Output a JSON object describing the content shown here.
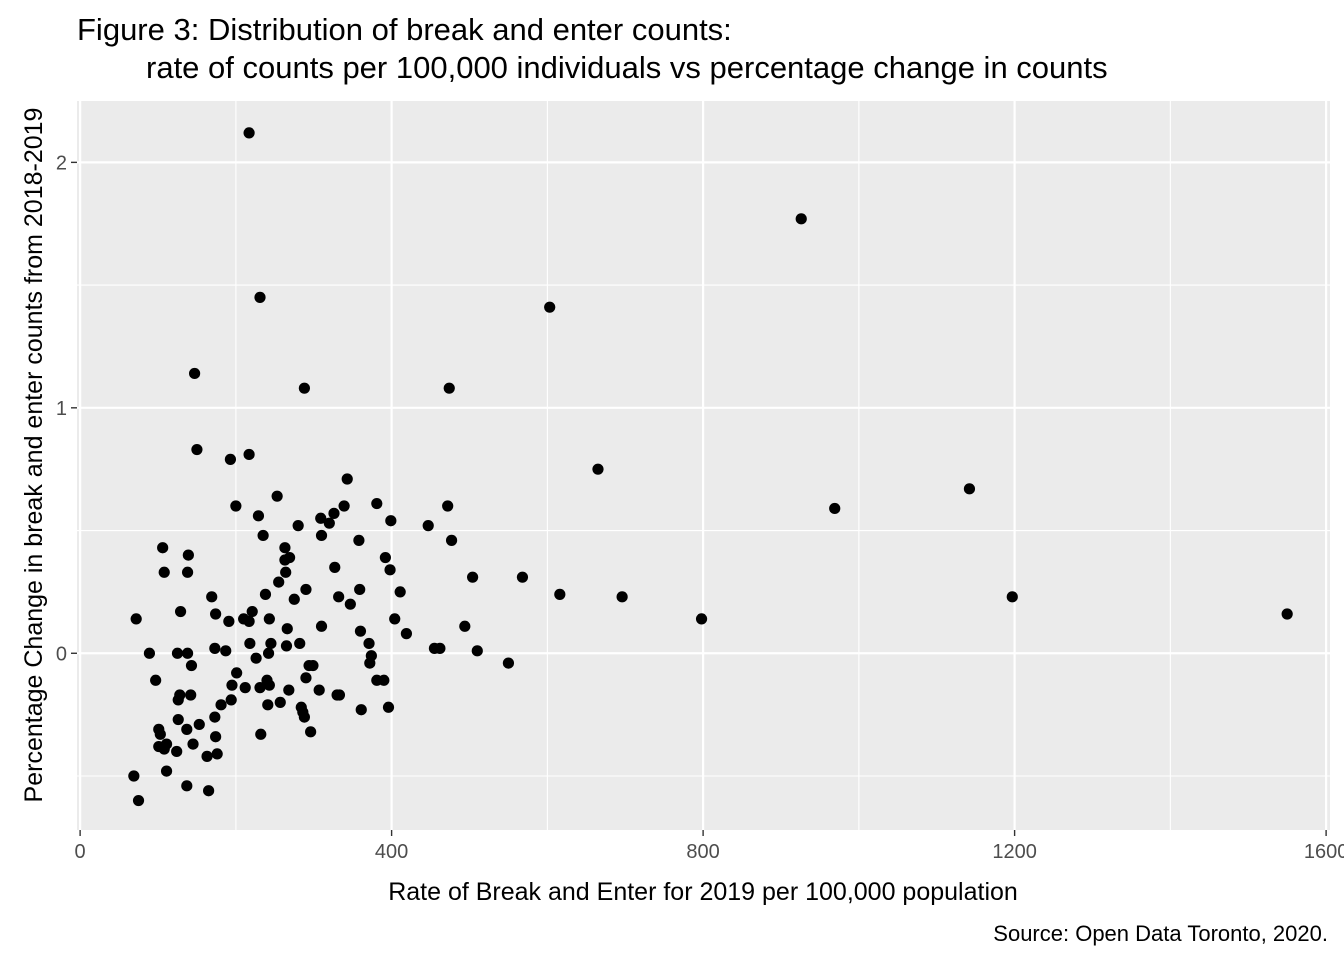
{
  "title_line1": "Figure 3: Distribution of break and enter counts:",
  "title_line2": "rate of counts per 100,000 individuals vs percentage change in counts",
  "caption": "Source: Open Data Toronto, 2020.",
  "colors": {
    "panel": "#ebebeb",
    "grid": "#ffffff",
    "point": "#000000",
    "tick_text": "#4d4d4d"
  },
  "chart_data": {
    "type": "scatter",
    "title": "Figure 3: Distribution of break and enter counts: rate of counts per 100,000 individuals vs percentage change in counts",
    "xlabel": "Rate of Break and Enter for 2019 per 100,000 population",
    "ylabel": "Percentage Change in break and enter counts from 2018-2019",
    "xlim": [
      -4,
      1605
    ],
    "ylim": [
      -0.72,
      2.25
    ],
    "x_ticks": [
      0,
      400,
      800,
      1200,
      1600
    ],
    "x_tick_labels": [
      "0",
      "400",
      "800",
      "1200",
      "1600"
    ],
    "y_ticks": [
      0,
      1,
      2
    ],
    "y_tick_labels": [
      "0",
      "1",
      "2"
    ],
    "grid": true,
    "points": [
      {
        "x": 217,
        "y": 2.12
      },
      {
        "x": 231,
        "y": 1.45
      },
      {
        "x": 147,
        "y": 1.14
      },
      {
        "x": 288,
        "y": 1.08
      },
      {
        "x": 150,
        "y": 0.83
      },
      {
        "x": 193,
        "y": 0.79
      },
      {
        "x": 217,
        "y": 0.81
      },
      {
        "x": 343,
        "y": 0.71
      },
      {
        "x": 253,
        "y": 0.64
      },
      {
        "x": 200,
        "y": 0.6
      },
      {
        "x": 339,
        "y": 0.6
      },
      {
        "x": 229,
        "y": 0.56
      },
      {
        "x": 309,
        "y": 0.55
      },
      {
        "x": 326,
        "y": 0.57
      },
      {
        "x": 381,
        "y": 0.61
      },
      {
        "x": 280,
        "y": 0.52
      },
      {
        "x": 320,
        "y": 0.53
      },
      {
        "x": 399,
        "y": 0.54
      },
      {
        "x": 235,
        "y": 0.48
      },
      {
        "x": 310,
        "y": 0.48
      },
      {
        "x": 263,
        "y": 0.43
      },
      {
        "x": 358,
        "y": 0.46
      },
      {
        "x": 263,
        "y": 0.38
      },
      {
        "x": 269,
        "y": 0.39
      },
      {
        "x": 392,
        "y": 0.39
      },
      {
        "x": 264,
        "y": 0.33
      },
      {
        "x": 327,
        "y": 0.35
      },
      {
        "x": 398,
        "y": 0.34
      },
      {
        "x": 255,
        "y": 0.29
      },
      {
        "x": 290,
        "y": 0.26
      },
      {
        "x": 359,
        "y": 0.26
      },
      {
        "x": 411,
        "y": 0.25
      },
      {
        "x": 238,
        "y": 0.24
      },
      {
        "x": 275,
        "y": 0.22
      },
      {
        "x": 332,
        "y": 0.23
      },
      {
        "x": 347,
        "y": 0.2
      },
      {
        "x": 221,
        "y": 0.17
      },
      {
        "x": 210,
        "y": 0.14
      },
      {
        "x": 217,
        "y": 0.13
      },
      {
        "x": 243,
        "y": 0.14
      },
      {
        "x": 310,
        "y": 0.11
      },
      {
        "x": 266,
        "y": 0.1
      },
      {
        "x": 360,
        "y": 0.09
      },
      {
        "x": 218,
        "y": 0.04
      },
      {
        "x": 245,
        "y": 0.04
      },
      {
        "x": 265,
        "y": 0.03
      },
      {
        "x": 282,
        "y": 0.04
      },
      {
        "x": 371,
        "y": 0.04
      },
      {
        "x": 242,
        "y": 0.0
      },
      {
        "x": 226,
        "y": -0.02
      },
      {
        "x": 374,
        "y": -0.01
      },
      {
        "x": 372,
        "y": -0.04
      },
      {
        "x": 294,
        "y": -0.05
      },
      {
        "x": 299,
        "y": -0.05
      },
      {
        "x": 201,
        "y": -0.08
      },
      {
        "x": 240,
        "y": -0.11
      },
      {
        "x": 290,
        "y": -0.1
      },
      {
        "x": 381,
        "y": -0.11
      },
      {
        "x": 390,
        "y": -0.11
      },
      {
        "x": 195,
        "y": -0.13
      },
      {
        "x": 212,
        "y": -0.14
      },
      {
        "x": 231,
        "y": -0.14
      },
      {
        "x": 243,
        "y": -0.13
      },
      {
        "x": 268,
        "y": -0.15
      },
      {
        "x": 307,
        "y": -0.15
      },
      {
        "x": 330,
        "y": -0.17
      },
      {
        "x": 333,
        "y": -0.17
      },
      {
        "x": 194,
        "y": -0.19
      },
      {
        "x": 181,
        "y": -0.21
      },
      {
        "x": 241,
        "y": -0.21
      },
      {
        "x": 257,
        "y": -0.2
      },
      {
        "x": 284,
        "y": -0.22
      },
      {
        "x": 286,
        "y": -0.24
      },
      {
        "x": 361,
        "y": -0.23
      },
      {
        "x": 396,
        "y": -0.22
      },
      {
        "x": 288,
        "y": -0.26
      },
      {
        "x": 173,
        "y": -0.26
      },
      {
        "x": 296,
        "y": -0.32
      },
      {
        "x": 232,
        "y": -0.33
      },
      {
        "x": 174,
        "y": -0.34
      },
      {
        "x": 176,
        "y": -0.41
      },
      {
        "x": 163,
        "y": -0.42
      },
      {
        "x": 165,
        "y": -0.56
      },
      {
        "x": 137,
        "y": -0.54
      },
      {
        "x": 69,
        "y": -0.5
      },
      {
        "x": 75,
        "y": -0.6
      },
      {
        "x": 72,
        "y": 0.14
      },
      {
        "x": 89,
        "y": 0.0
      },
      {
        "x": 97,
        "y": -0.11
      },
      {
        "x": 101,
        "y": -0.31
      },
      {
        "x": 103,
        "y": -0.33
      },
      {
        "x": 101,
        "y": -0.38
      },
      {
        "x": 108,
        "y": -0.39
      },
      {
        "x": 111,
        "y": -0.37
      },
      {
        "x": 111,
        "y": -0.48
      },
      {
        "x": 124,
        "y": -0.4
      },
      {
        "x": 126,
        "y": -0.27
      },
      {
        "x": 126,
        "y": -0.19
      },
      {
        "x": 128,
        "y": -0.17
      },
      {
        "x": 137,
        "y": -0.31
      },
      {
        "x": 142,
        "y": -0.17
      },
      {
        "x": 145,
        "y": -0.37
      },
      {
        "x": 153,
        "y": -0.29
      },
      {
        "x": 143,
        "y": -0.05
      },
      {
        "x": 125,
        "y": 0.0
      },
      {
        "x": 138,
        "y": 0.0
      },
      {
        "x": 129,
        "y": 0.17
      },
      {
        "x": 106,
        "y": 0.43
      },
      {
        "x": 108,
        "y": 0.33
      },
      {
        "x": 139,
        "y": 0.4
      },
      {
        "x": 138,
        "y": 0.33
      },
      {
        "x": 169,
        "y": 0.23
      },
      {
        "x": 174,
        "y": 0.16
      },
      {
        "x": 191,
        "y": 0.13
      },
      {
        "x": 173,
        "y": 0.02
      },
      {
        "x": 187,
        "y": 0.01
      },
      {
        "x": 404,
        "y": 0.14
      },
      {
        "x": 419,
        "y": 0.08
      },
      {
        "x": 447,
        "y": 0.52
      },
      {
        "x": 472,
        "y": 0.6
      },
      {
        "x": 474,
        "y": 1.08
      },
      {
        "x": 477,
        "y": 0.46
      },
      {
        "x": 455,
        "y": 0.02
      },
      {
        "x": 462,
        "y": 0.02
      },
      {
        "x": 494,
        "y": 0.11
      },
      {
        "x": 504,
        "y": 0.31
      },
      {
        "x": 510,
        "y": 0.01
      },
      {
        "x": 550,
        "y": -0.04
      },
      {
        "x": 568,
        "y": 0.31
      },
      {
        "x": 603,
        "y": 1.41
      },
      {
        "x": 616,
        "y": 0.24
      },
      {
        "x": 665,
        "y": 0.75
      },
      {
        "x": 696,
        "y": 0.23
      },
      {
        "x": 798,
        "y": 0.14
      },
      {
        "x": 926,
        "y": 1.77
      },
      {
        "x": 969,
        "y": 0.59
      },
      {
        "x": 1142,
        "y": 0.67
      },
      {
        "x": 1197,
        "y": 0.23
      },
      {
        "x": 1550,
        "y": 0.16
      }
    ]
  }
}
